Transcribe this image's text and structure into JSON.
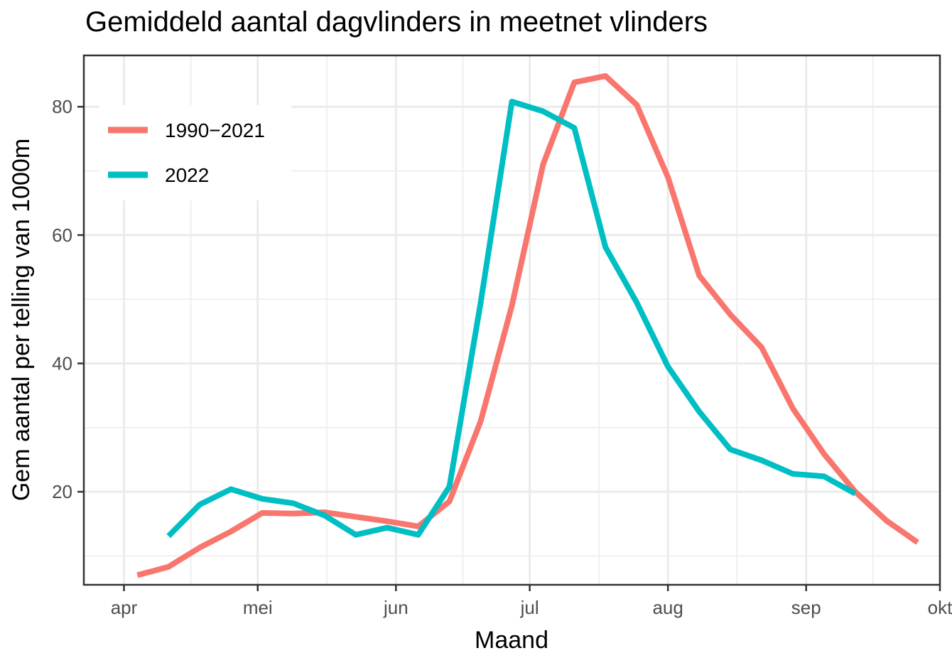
{
  "chart_data": {
    "type": "line",
    "title": "Gemiddeld aantal dagvlinders in meetnet vlinders",
    "xlabel": "Maand",
    "ylabel": "Gem aantal per telling van 1000m",
    "x_ticks": [
      {
        "label": "apr",
        "value": 0
      },
      {
        "label": "mei",
        "value": 30
      },
      {
        "label": "jun",
        "value": 61
      },
      {
        "label": "jul",
        "value": 91
      },
      {
        "label": "aug",
        "value": 122
      },
      {
        "label": "sep",
        "value": 153
      },
      {
        "label": "okt",
        "value": 183
      }
    ],
    "xlim": [
      -9,
      183
    ],
    "ylim": [
      5.5,
      88
    ],
    "y_ticks": [
      20,
      40,
      60,
      80
    ],
    "grid": true,
    "legend_position": "top-left",
    "series": [
      {
        "name": "1990−2021",
        "color": "#f8766d",
        "x": [
          3,
          10,
          17,
          24,
          31,
          38,
          45,
          52,
          59,
          66,
          73,
          80,
          87,
          94,
          101,
          108,
          115,
          122,
          129,
          136,
          143,
          150,
          157,
          164,
          171,
          178
        ],
        "y": [
          7,
          8.3,
          11.3,
          13.8,
          16.7,
          16.6,
          16.8,
          16.1,
          15.4,
          14.6,
          18.5,
          31,
          49,
          71,
          83.8,
          84.8,
          80.3,
          69,
          53.7,
          47.6,
          42.5,
          33,
          25.9,
          20,
          15.5,
          12.1
        ]
      },
      {
        "name": "2022",
        "color": "#00bfc4",
        "x": [
          10,
          17,
          24,
          31,
          38,
          45,
          52,
          59,
          66,
          73,
          80,
          87,
          94,
          101,
          108,
          115,
          122,
          129,
          136,
          143,
          150,
          157,
          164
        ],
        "y": [
          13.1,
          18,
          20.4,
          18.9,
          18.2,
          16.3,
          13.3,
          14.4,
          13.3,
          20.8,
          49.5,
          80.8,
          79.3,
          76.7,
          58.1,
          49.5,
          39.5,
          32.5,
          26.6,
          24.9,
          22.8,
          22.4,
          19.7
        ]
      }
    ]
  }
}
